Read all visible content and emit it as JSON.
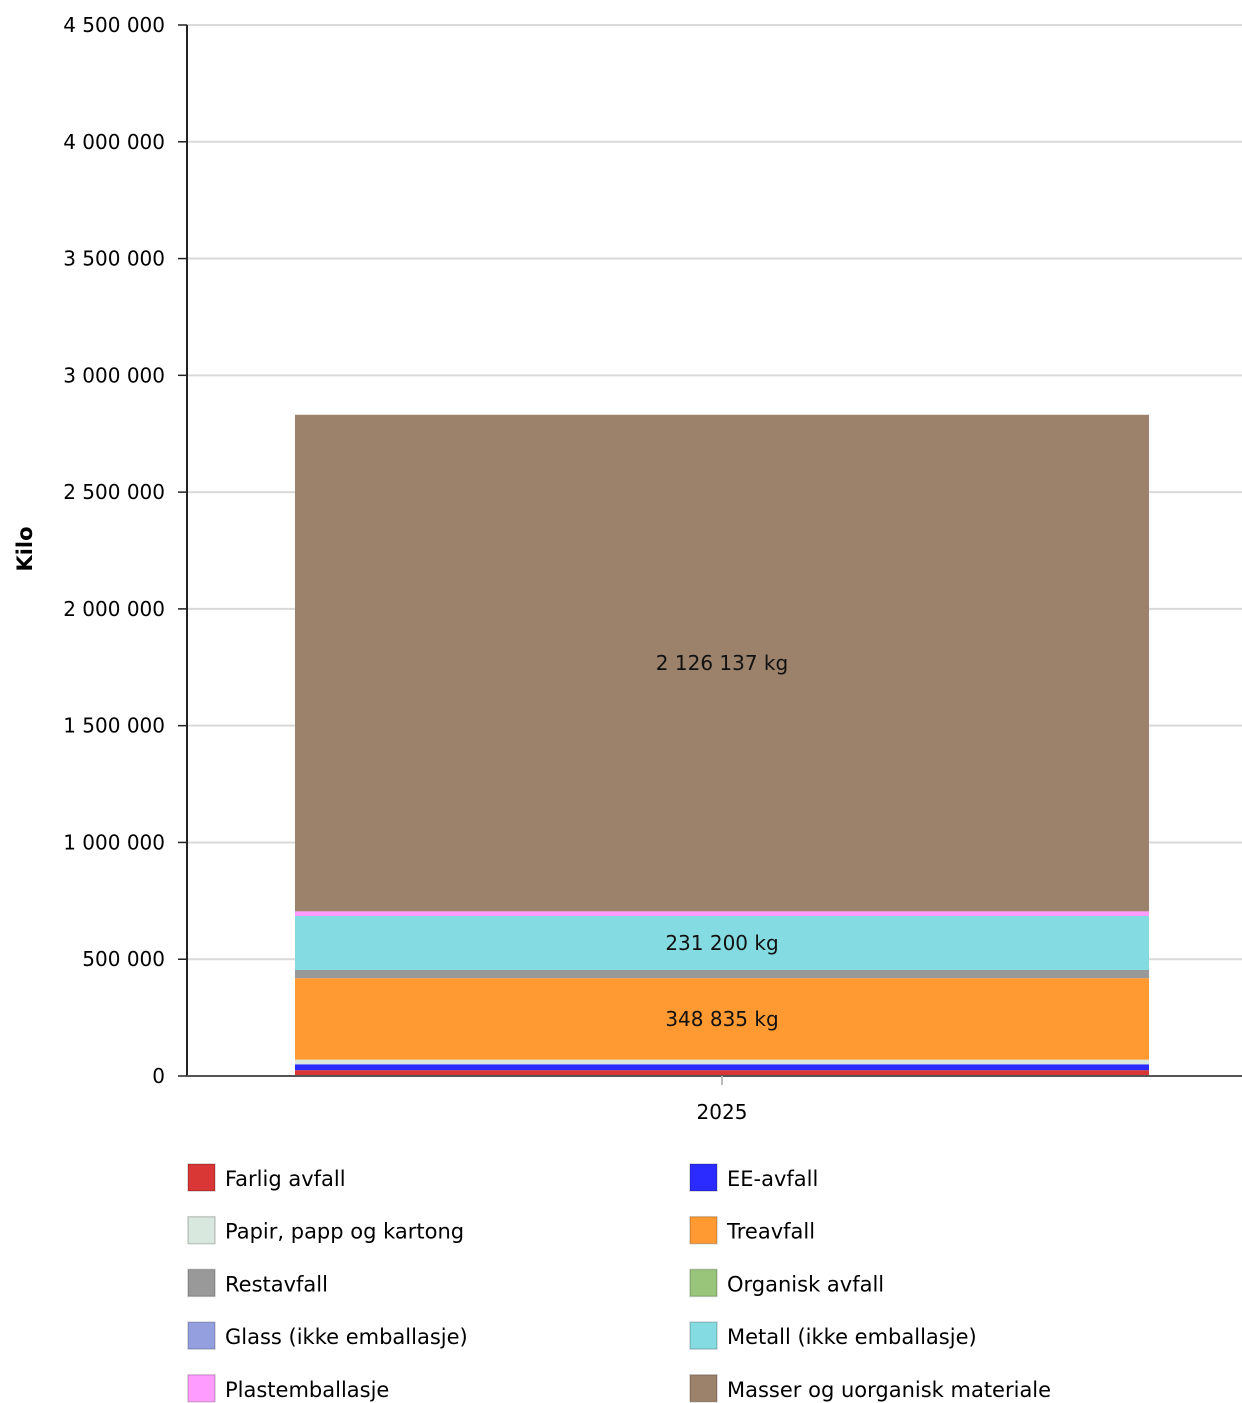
{
  "chart_data": {
    "type": "bar",
    "stacked": true,
    "categories": [
      "2025"
    ],
    "ylabel": "Kilo",
    "xlabel": "",
    "ylim": [
      0,
      4500000
    ],
    "yticks": [
      0,
      500000,
      1000000,
      1500000,
      2000000,
      2500000,
      3000000,
      3500000,
      4000000,
      4500000
    ],
    "ytick_labels": [
      "0",
      "500 000",
      "1 000 000",
      "1 500 000",
      "2 000 000",
      "2 500 000",
      "3 000 000",
      "3 500 000",
      "4 000 000",
      "4 500 000"
    ],
    "grid": true,
    "legend_position": "bottom",
    "series": [
      {
        "name": "Farlig avfall",
        "values": [
          25000
        ],
        "color": "#d93636",
        "label": ""
      },
      {
        "name": "EE-avfall",
        "values": [
          25000
        ],
        "color": "#2b2bff",
        "label": ""
      },
      {
        "name": "Papir, papp og kartong",
        "values": [
          20000
        ],
        "color": "#d9e8de",
        "label": ""
      },
      {
        "name": "Treavfall",
        "values": [
          348835
        ],
        "color": "#ff9a33",
        "label": "348 835 kg"
      },
      {
        "name": "Restavfall",
        "values": [
          35000
        ],
        "color": "#999999",
        "label": ""
      },
      {
        "name": "Organisk avfall",
        "values": [
          0
        ],
        "color": "#99c57a",
        "label": ""
      },
      {
        "name": "Glass (ikke emballasje)",
        "values": [
          0
        ],
        "color": "#949fe0",
        "label": ""
      },
      {
        "name": "Metall (ikke emballasje)",
        "values": [
          231200
        ],
        "color": "#84dce2",
        "label": "231 200 kg"
      },
      {
        "name": "Plastemballasje",
        "values": [
          20000
        ],
        "color": "#ff9cff",
        "label": ""
      },
      {
        "name": "Masser og uorganisk materiale",
        "values": [
          2126137
        ],
        "color": "#9c826b",
        "label": "2 126 137 kg"
      }
    ],
    "legend_columns": [
      [
        "Farlig avfall",
        "Papir, papp og kartong",
        "Restavfall",
        "Glass (ikke emballasje)",
        "Plastemballasje"
      ],
      [
        "EE-avfall",
        "Treavfall",
        "Organisk avfall",
        "Metall (ikke emballasje)",
        "Masser og uorganisk materiale"
      ]
    ]
  }
}
